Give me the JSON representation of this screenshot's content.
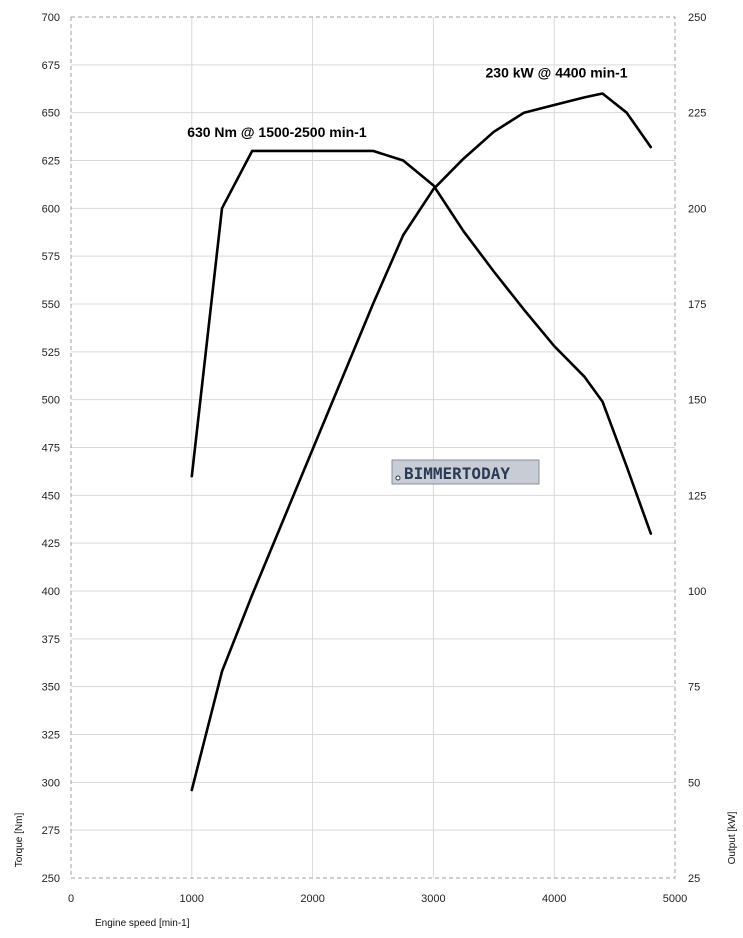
{
  "chart_data": {
    "type": "line",
    "title": "",
    "xlabel": "Engine speed [min-1]",
    "ylabel_left": "Torque [Nm]",
    "ylabel_right": "Output [kW]",
    "xlim": [
      0,
      5000
    ],
    "ylim_left": [
      250,
      700
    ],
    "ylim_right": [
      25,
      250
    ],
    "x_ticks": [
      0,
      1000,
      2000,
      3000,
      4000,
      5000
    ],
    "y_left_ticks": [
      250,
      275,
      300,
      325,
      350,
      375,
      400,
      425,
      450,
      475,
      500,
      525,
      550,
      575,
      600,
      625,
      650,
      675,
      700
    ],
    "y_right_ticks": [
      25,
      50,
      75,
      100,
      125,
      150,
      175,
      200,
      225,
      250
    ],
    "grid": true,
    "series": [
      {
        "key": "torque",
        "axis": "left",
        "x": [
          1000,
          1250,
          1500,
          2000,
          2500,
          2750,
          3000,
          3250,
          3500,
          3750,
          4000,
          4250,
          4400,
          4600,
          4800
        ],
        "y": [
          460,
          600,
          630,
          630,
          630,
          625,
          612,
          588,
          567,
          547,
          528,
          512,
          499,
          465,
          430
        ]
      },
      {
        "key": "output",
        "axis": "right",
        "x": [
          1000,
          1250,
          1500,
          1750,
          2000,
          2250,
          2500,
          2750,
          3000,
          3250,
          3500,
          3750,
          4000,
          4250,
          4400,
          4600,
          4800
        ],
        "y": [
          48,
          79,
          99,
          118,
          137,
          156,
          175,
          193,
          205,
          213,
          220,
          225,
          227,
          229,
          230,
          225,
          216
        ]
      }
    ],
    "annotations": [
      {
        "key": "peak_torque",
        "text": "630 Nm @ 1500-2500 min-1",
        "x": 1500,
        "y": 630,
        "axis": "left"
      },
      {
        "key": "peak_power",
        "text": "230 kW @ 4400 min-1",
        "x": 4400,
        "y": 230,
        "axis": "right"
      }
    ],
    "watermark": {
      "text": "BIMMERTODAY",
      "color": "#2b3a55",
      "bg": "#c8ccd4"
    }
  }
}
